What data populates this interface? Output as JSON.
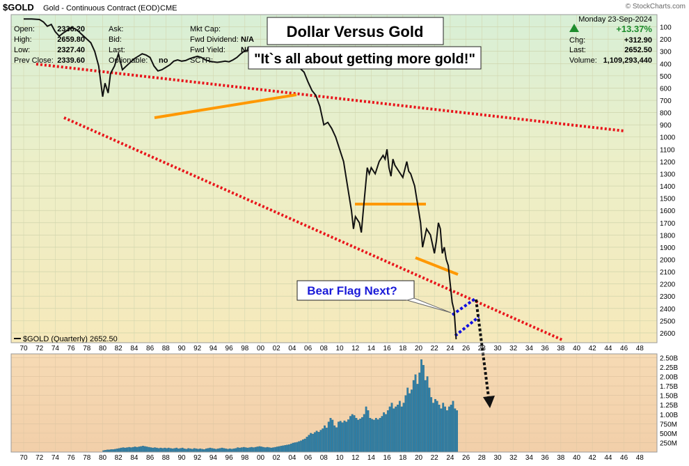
{
  "header": {
    "symbol": "$GOLD",
    "description": "Gold - Continuous Contract (EOD)",
    "exchange": "CME",
    "watermark": "© StockCharts.com",
    "date": "Monday  23-Sep-2024"
  },
  "stats_left": [
    {
      "label": "Open:",
      "value": "2336.20"
    },
    {
      "label": "High:",
      "value": "2659.80"
    },
    {
      "label": "Low:",
      "value": "2327.40"
    },
    {
      "label": "Prev Close:",
      "value": "2339.60"
    }
  ],
  "stats_mid": [
    {
      "label": "Ask:",
      "value": ""
    },
    {
      "label": "Bid:",
      "value": ""
    },
    {
      "label": "Last:",
      "value": ""
    },
    {
      "label": "Optionable:",
      "value": "no"
    }
  ],
  "stats_mid2": [
    {
      "label": "Mkt Cap:",
      "value": ""
    },
    {
      "label": "Fwd Dividend:",
      "value": "N/A"
    },
    {
      "label": "Fwd Yield:",
      "value": "N/A"
    },
    {
      "label": "SCTR:",
      "value": ""
    }
  ],
  "stats_right": {
    "change_pct": "+13.37%",
    "chg_label": "Chg:",
    "chg_value": "+312.90",
    "last_label": "Last:",
    "last_value": "2652.50",
    "volume_label": "Volume:",
    "volume_value": "1,109,293,440"
  },
  "annotations": {
    "title": "Dollar Versus Gold",
    "quote": "\"It`s all about getting more gold!\"",
    "bear_flag": "Bear Flag Next?"
  },
  "legend": "$GOLD (Quarterly) 2652.50",
  "colors": {
    "price_line": "#111111",
    "trendline_red": "#e8151b",
    "support_orange": "#ff9800",
    "flag_blue": "#1010e0",
    "volume_bar": "#2f7fa6",
    "annotation_text_blue": "#1a1ad8",
    "up_arrow": "#1e8c2c"
  },
  "chart_data": [
    {
      "type": "line",
      "name": "price",
      "y_axis": "inverted",
      "x_ticks": [
        "70",
        "72",
        "74",
        "76",
        "78",
        "80",
        "82",
        "84",
        "86",
        "88",
        "90",
        "92",
        "94",
        "96",
        "98",
        "00",
        "02",
        "04",
        "06",
        "08",
        "10",
        "12",
        "14",
        "16",
        "18",
        "20",
        "22",
        "24",
        "26",
        "28",
        "30",
        "32",
        "34",
        "36",
        "38",
        "40",
        "42",
        "44",
        "46",
        "48"
      ],
      "y_ticks": [
        100,
        200,
        300,
        400,
        500,
        600,
        700,
        800,
        900,
        1000,
        1100,
        1200,
        1300,
        1400,
        1500,
        1600,
        1700,
        1800,
        1900,
        2000,
        2100,
        2200,
        2300,
        2400,
        2500,
        2600
      ],
      "ylim": [
        0,
        2680
      ],
      "points": [
        [
          1970.0,
          35
        ],
        [
          1971.0,
          36
        ],
        [
          1972.0,
          40
        ],
        [
          1972.5,
          60
        ],
        [
          1973.0,
          95
        ],
        [
          1973.5,
          80
        ],
        [
          1974.0,
          140
        ],
        [
          1974.5,
          175
        ],
        [
          1975.0,
          150
        ],
        [
          1975.5,
          130
        ],
        [
          1976.0,
          105
        ],
        [
          1976.5,
          115
        ],
        [
          1977.0,
          140
        ],
        [
          1977.5,
          170
        ],
        [
          1978.0,
          200
        ],
        [
          1978.5,
          230
        ],
        [
          1979.0,
          300
        ],
        [
          1979.5,
          420
        ],
        [
          1980.0,
          670
        ],
        [
          1980.3,
          560
        ],
        [
          1980.7,
          640
        ],
        [
          1981.0,
          480
        ],
        [
          1981.5,
          420
        ],
        [
          1982.0,
          320
        ],
        [
          1982.5,
          450
        ],
        [
          1983.0,
          420
        ],
        [
          1983.5,
          390
        ],
        [
          1984.0,
          360
        ],
        [
          1984.5,
          340
        ],
        [
          1985.0,
          320
        ],
        [
          1985.5,
          330
        ],
        [
          1986.0,
          350
        ],
        [
          1986.5,
          420
        ],
        [
          1987.0,
          460
        ],
        [
          1987.5,
          450
        ],
        [
          1988.0,
          430
        ],
        [
          1988.5,
          410
        ],
        [
          1989.0,
          380
        ],
        [
          1989.5,
          370
        ],
        [
          1990.0,
          380
        ],
        [
          1990.5,
          375
        ],
        [
          1991.0,
          360
        ],
        [
          1991.5,
          350
        ],
        [
          1992.0,
          340
        ],
        [
          1992.5,
          350
        ],
        [
          1993.0,
          370
        ],
        [
          1993.5,
          380
        ],
        [
          1994.0,
          385
        ],
        [
          1994.5,
          390
        ],
        [
          1995.0,
          385
        ],
        [
          1995.5,
          380
        ],
        [
          1996.0,
          385
        ],
        [
          1996.5,
          370
        ],
        [
          1997.0,
          350
        ],
        [
          1997.5,
          320
        ],
        [
          1998.0,
          295
        ],
        [
          1998.5,
          290
        ],
        [
          1999.0,
          270
        ],
        [
          1999.5,
          290
        ],
        [
          2000.0,
          280
        ],
        [
          2000.5,
          275
        ],
        [
          2001.0,
          265
        ],
        [
          2001.5,
          280
        ],
        [
          2002.0,
          310
        ],
        [
          2002.5,
          320
        ],
        [
          2003.0,
          350
        ],
        [
          2003.5,
          380
        ],
        [
          2004.0,
          410
        ],
        [
          2004.5,
          430
        ],
        [
          2005.0,
          440
        ],
        [
          2005.5,
          470
        ],
        [
          2006.0,
          550
        ],
        [
          2006.5,
          620
        ],
        [
          2007.0,
          660
        ],
        [
          2007.5,
          750
        ],
        [
          2008.0,
          900
        ],
        [
          2008.5,
          880
        ],
        [
          2009.0,
          930
        ],
        [
          2009.5,
          1000
        ],
        [
          2010.0,
          1100
        ],
        [
          2010.5,
          1200
        ],
        [
          2011.0,
          1400
        ],
        [
          2011.5,
          1600
        ],
        [
          2011.75,
          1750
        ],
        [
          2012.0,
          1650
        ],
        [
          2012.5,
          1700
        ],
        [
          2012.75,
          1780
        ],
        [
          2013.0,
          1600
        ],
        [
          2013.5,
          1250
        ],
        [
          2013.75,
          1300
        ],
        [
          2014.0,
          1250
        ],
        [
          2014.5,
          1300
        ],
        [
          2015.0,
          1200
        ],
        [
          2015.5,
          1150
        ],
        [
          2015.75,
          1180
        ],
        [
          2016.0,
          1100
        ],
        [
          2016.25,
          1250
        ],
        [
          2016.5,
          1320
        ],
        [
          2016.75,
          1180
        ],
        [
          2017.0,
          1230
        ],
        [
          2017.5,
          1280
        ],
        [
          2018.0,
          1330
        ],
        [
          2018.5,
          1200
        ],
        [
          2018.75,
          1280
        ],
        [
          2019.0,
          1300
        ],
        [
          2019.5,
          1400
        ],
        [
          2020.0,
          1600
        ],
        [
          2020.25,
          1700
        ],
        [
          2020.5,
          1900
        ],
        [
          2021.0,
          1750
        ],
        [
          2021.5,
          1800
        ],
        [
          2022.0,
          1950
        ],
        [
          2022.25,
          1850
        ],
        [
          2022.5,
          1700
        ],
        [
          2022.75,
          1750
        ],
        [
          2023.0,
          1950
        ],
        [
          2023.25,
          1900
        ],
        [
          2023.5,
          2000
        ],
        [
          2023.75,
          2050
        ],
        [
          2024.0,
          2200
        ],
        [
          2024.25,
          2350
        ],
        [
          2024.5,
          2420
        ],
        [
          2024.75,
          2652
        ]
      ]
    },
    {
      "type": "bar",
      "name": "volume",
      "ylabels": [
        "2.50B",
        "2.25B",
        "2.00B",
        "1.75B",
        "1.50B",
        "1.25B",
        "1.00B",
        "750M",
        "500M",
        "250M"
      ],
      "ylim": [
        0,
        2600000000
      ],
      "x_ticks": [
        "70",
        "72",
        "74",
        "76",
        "78",
        "80",
        "82",
        "84",
        "86",
        "88",
        "90",
        "92",
        "94",
        "96",
        "98",
        "00",
        "02",
        "04",
        "06",
        "08",
        "10",
        "12",
        "14",
        "16",
        "18",
        "20",
        "22",
        "24",
        "26",
        "28",
        "30",
        "32",
        "34",
        "36",
        "38",
        "40",
        "42",
        "44",
        "46",
        "48"
      ],
      "bars": [
        [
          1980.0,
          40
        ],
        [
          1980.25,
          50
        ],
        [
          1980.5,
          60
        ],
        [
          1980.75,
          60
        ],
        [
          1981.0,
          70
        ],
        [
          1981.25,
          70
        ],
        [
          1981.5,
          80
        ],
        [
          1981.75,
          90
        ],
        [
          1982.0,
          100
        ],
        [
          1982.25,
          110
        ],
        [
          1982.5,
          120
        ],
        [
          1982.75,
          110
        ],
        [
          1983.0,
          120
        ],
        [
          1983.25,
          130
        ],
        [
          1983.5,
          120
        ],
        [
          1983.75,
          130
        ],
        [
          1984.0,
          140
        ],
        [
          1984.25,
          130
        ],
        [
          1984.5,
          140
        ],
        [
          1984.75,
          150
        ],
        [
          1985.0,
          160
        ],
        [
          1985.25,
          150
        ],
        [
          1985.5,
          140
        ],
        [
          1985.75,
          130
        ],
        [
          1986.0,
          120
        ],
        [
          1986.25,
          110
        ],
        [
          1986.5,
          120
        ],
        [
          1986.75,
          110
        ],
        [
          1987.0,
          100
        ],
        [
          1987.25,
          110
        ],
        [
          1987.5,
          100
        ],
        [
          1987.75,
          110
        ],
        [
          1988.0,
          100
        ],
        [
          1988.25,
          110
        ],
        [
          1988.5,
          100
        ],
        [
          1988.75,
          90
        ],
        [
          1989.0,
          100
        ],
        [
          1989.25,
          110
        ],
        [
          1989.5,
          90
        ],
        [
          1989.75,
          100
        ],
        [
          1990.0,
          110
        ],
        [
          1990.25,
          90
        ],
        [
          1990.5,
          80
        ],
        [
          1990.75,
          100
        ],
        [
          1991.0,
          90
        ],
        [
          1991.25,
          80
        ],
        [
          1991.5,
          100
        ],
        [
          1991.75,
          90
        ],
        [
          1992.0,
          80
        ],
        [
          1992.25,
          90
        ],
        [
          1992.5,
          80
        ],
        [
          1992.75,
          70
        ],
        [
          1993.0,
          90
        ],
        [
          1993.25,
          100
        ],
        [
          1993.5,
          110
        ],
        [
          1993.75,
          100
        ],
        [
          1994.0,
          90
        ],
        [
          1994.25,
          80
        ],
        [
          1994.5,
          90
        ],
        [
          1994.75,
          100
        ],
        [
          1995.0,
          110
        ],
        [
          1995.25,
          100
        ],
        [
          1995.5,
          90
        ],
        [
          1995.75,
          80
        ],
        [
          1996.0,
          90
        ],
        [
          1996.25,
          80
        ],
        [
          1996.5,
          90
        ],
        [
          1996.75,
          100
        ],
        [
          1997.0,
          120
        ],
        [
          1997.25,
          110
        ],
        [
          1997.5,
          120
        ],
        [
          1997.75,
          130
        ],
        [
          1998.0,
          120
        ],
        [
          1998.25,
          110
        ],
        [
          1998.5,
          120
        ],
        [
          1998.75,
          130
        ],
        [
          1999.0,
          120
        ],
        [
          1999.25,
          130
        ],
        [
          1999.5,
          140
        ],
        [
          1999.75,
          150
        ],
        [
          2000.0,
          140
        ],
        [
          2000.25,
          130
        ],
        [
          2000.5,
          120
        ],
        [
          2000.75,
          130
        ],
        [
          2001.0,
          120
        ],
        [
          2001.25,
          110
        ],
        [
          2001.5,
          120
        ],
        [
          2001.75,
          130
        ],
        [
          2002.0,
          140
        ],
        [
          2002.25,
          150
        ],
        [
          2002.5,
          160
        ],
        [
          2002.75,
          170
        ],
        [
          2003.0,
          180
        ],
        [
          2003.25,
          190
        ],
        [
          2003.5,
          200
        ],
        [
          2003.75,
          220
        ],
        [
          2004.0,
          240
        ],
        [
          2004.25,
          250
        ],
        [
          2004.5,
          260
        ],
        [
          2004.75,
          280
        ],
        [
          2005.0,
          300
        ],
        [
          2005.25,
          330
        ],
        [
          2005.5,
          350
        ],
        [
          2005.75,
          400
        ],
        [
          2006.0,
          450
        ],
        [
          2006.25,
          500
        ],
        [
          2006.5,
          480
        ],
        [
          2006.75,
          520
        ],
        [
          2007.0,
          560
        ],
        [
          2007.25,
          530
        ],
        [
          2007.5,
          580
        ],
        [
          2007.75,
          620
        ],
        [
          2008.0,
          700
        ],
        [
          2008.25,
          640
        ],
        [
          2008.5,
          800
        ],
        [
          2008.75,
          900
        ],
        [
          2009.0,
          850
        ],
        [
          2009.25,
          700
        ],
        [
          2009.5,
          650
        ],
        [
          2009.75,
          800
        ],
        [
          2010.0,
          820
        ],
        [
          2010.25,
          780
        ],
        [
          2010.5,
          830
        ],
        [
          2010.75,
          800
        ],
        [
          2011.0,
          860
        ],
        [
          2011.25,
          950
        ],
        [
          2011.5,
          1000
        ],
        [
          2011.75,
          970
        ],
        [
          2012.0,
          900
        ],
        [
          2012.25,
          850
        ],
        [
          2012.5,
          880
        ],
        [
          2012.75,
          920
        ],
        [
          2013.0,
          1000
        ],
        [
          2013.25,
          1200
        ],
        [
          2013.5,
          1100
        ],
        [
          2013.75,
          900
        ],
        [
          2014.0,
          870
        ],
        [
          2014.25,
          850
        ],
        [
          2014.5,
          900
        ],
        [
          2014.75,
          860
        ],
        [
          2015.0,
          900
        ],
        [
          2015.25,
          950
        ],
        [
          2015.5,
          1050
        ],
        [
          2015.75,
          1000
        ],
        [
          2016.0,
          1100
        ],
        [
          2016.25,
          1200
        ],
        [
          2016.5,
          1300
        ],
        [
          2016.75,
          1150
        ],
        [
          2017.0,
          1200
        ],
        [
          2017.25,
          1250
        ],
        [
          2017.5,
          1350
        ],
        [
          2017.75,
          1200
        ],
        [
          2018.0,
          1300
        ],
        [
          2018.25,
          1500
        ],
        [
          2018.5,
          1700
        ],
        [
          2018.75,
          1550
        ],
        [
          2019.0,
          1650
        ],
        [
          2019.25,
          1900
        ],
        [
          2019.5,
          2050
        ],
        [
          2019.75,
          1800
        ],
        [
          2020.0,
          2100
        ],
        [
          2020.25,
          2450
        ],
        [
          2020.5,
          2300
        ],
        [
          2020.75,
          1900
        ],
        [
          2021.0,
          2000
        ],
        [
          2021.25,
          1700
        ],
        [
          2021.5,
          1450
        ],
        [
          2021.75,
          1300
        ],
        [
          2022.0,
          1400
        ],
        [
          2022.25,
          1350
        ],
        [
          2022.5,
          1250
        ],
        [
          2022.75,
          1150
        ],
        [
          2023.0,
          1300
        ],
        [
          2023.25,
          1200
        ],
        [
          2023.5,
          1100
        ],
        [
          2023.75,
          1200
        ],
        [
          2024.0,
          1250
        ],
        [
          2024.25,
          1350
        ],
        [
          2024.5,
          1150
        ],
        [
          2024.75,
          1100
        ]
      ]
    }
  ]
}
